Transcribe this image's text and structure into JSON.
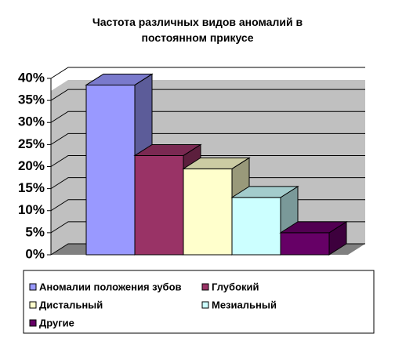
{
  "chart_data": {
    "type": "bar3d",
    "title": "Частота различных видов аномалий в постоянном прикусе",
    "categories": [
      "Аномалии положения зубов",
      "Глубокий",
      "Дистальный",
      "Мезиальный",
      "Другие"
    ],
    "values": [
      38.5,
      22.5,
      19.5,
      13,
      5
    ],
    "colors": [
      "#9999ff",
      "#993366",
      "#ffffcc",
      "#ccffff",
      "#660066"
    ],
    "ylim": [
      0,
      40
    ],
    "yticks": [
      {
        "value": 0,
        "label": "0%"
      },
      {
        "value": 5,
        "label": "5%"
      },
      {
        "value": 10,
        "label": "10%"
      },
      {
        "value": 15,
        "label": "15%"
      },
      {
        "value": 20,
        "label": "20%"
      },
      {
        "value": 25,
        "label": "25%"
      },
      {
        "value": 30,
        "label": "30%"
      },
      {
        "value": 35,
        "label": "35%"
      },
      {
        "value": 40,
        "label": "40%"
      }
    ],
    "grid": true,
    "legend": "bottom"
  }
}
